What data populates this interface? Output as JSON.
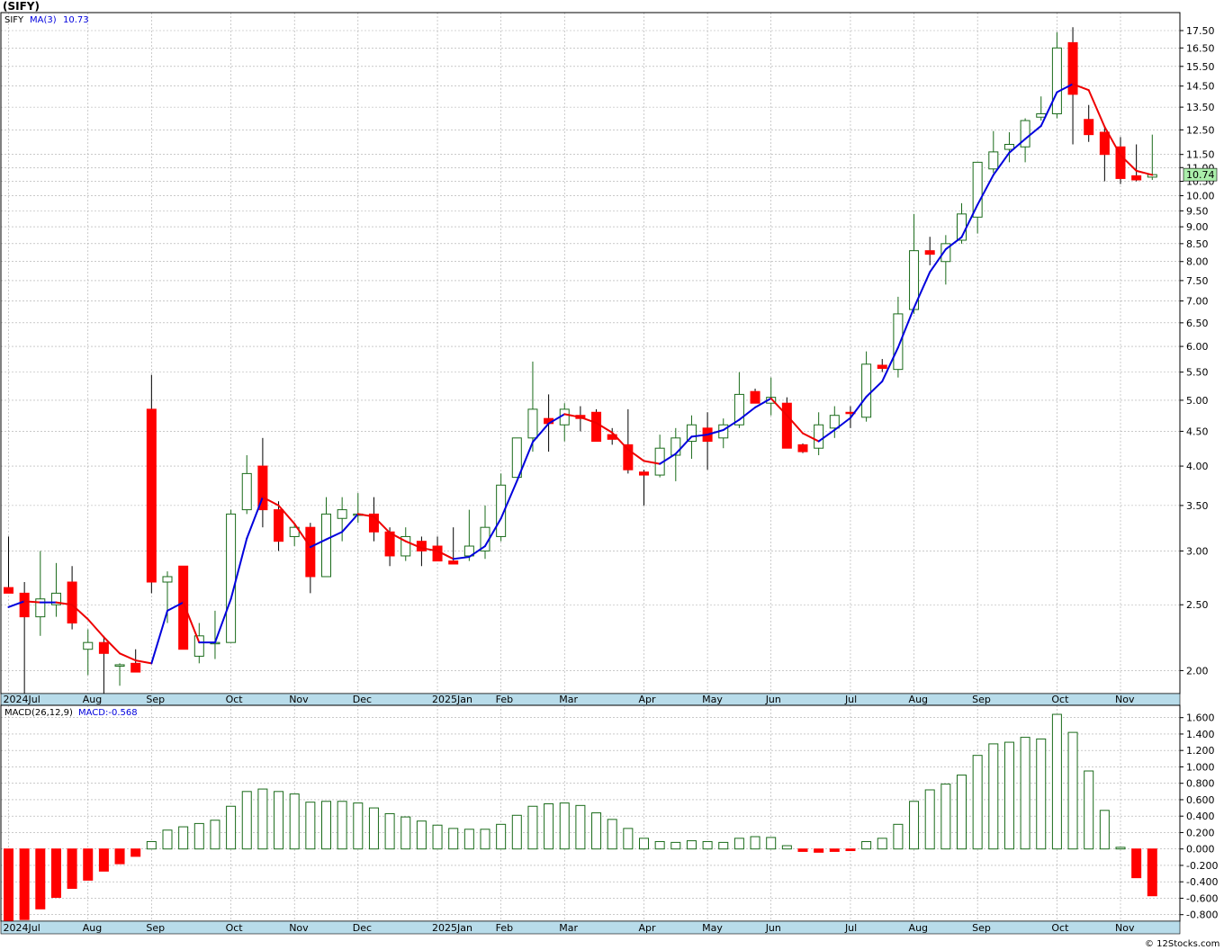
{
  "title": "(SIFY)",
  "footer": "© 12Stocks.com",
  "colors": {
    "up": "#1a6b1a",
    "down_fill": "#ff0000",
    "ma_up": "#0000dd",
    "ma_down": "#ee0000",
    "grid": "#aaaaaa",
    "axis_bar": "#b8dcea",
    "price_badge": "#aaeeaa",
    "macd_pos": "#1a6b1a",
    "macd_neg": "#ff0000"
  },
  "chart_data": [
    {
      "type": "candlestick",
      "panel": "price",
      "legend": {
        "symbol": "SIFY",
        "ma_label": "MA(3)",
        "ma_value": "10.73"
      },
      "last_price_label": "10.74",
      "scale": "log",
      "ylim": [
        1.85,
        18.6
      ],
      "y_ticks": [
        "2.00",
        "2.50",
        "3.00",
        "3.50",
        "4.00",
        "4.50",
        "5.00",
        "5.50",
        "6.00",
        "6.50",
        "7.00",
        "7.50",
        "8.00",
        "8.50",
        "9.00",
        "9.50",
        "10.00",
        "10.50",
        "11.00",
        "11.50",
        "12.50",
        "13.50",
        "14.50",
        "15.50",
        "16.50",
        "17.50"
      ],
      "x_labels": [
        {
          "i": 0,
          "text": "2024Jul"
        },
        {
          "i": 5,
          "text": "Aug"
        },
        {
          "i": 9,
          "text": "Sep"
        },
        {
          "i": 14,
          "text": "Oct"
        },
        {
          "i": 18,
          "text": "Nov"
        },
        {
          "i": 22,
          "text": "Dec"
        },
        {
          "i": 27,
          "text": "2025Jan"
        },
        {
          "i": 31,
          "text": "Feb"
        },
        {
          "i": 35,
          "text": "Mar"
        },
        {
          "i": 40,
          "text": "Apr"
        },
        {
          "i": 44,
          "text": "May"
        },
        {
          "i": 48,
          "text": "Jun"
        },
        {
          "i": 53,
          "text": "Jul"
        },
        {
          "i": 57,
          "text": "Aug"
        },
        {
          "i": 61,
          "text": "Sep"
        },
        {
          "i": 66,
          "text": "Oct"
        },
        {
          "i": 70,
          "text": "Nov"
        }
      ],
      "candles": [
        {
          "o": 2.65,
          "h": 3.15,
          "l": 2.6,
          "c": 2.6
        },
        {
          "o": 2.6,
          "h": 2.7,
          "l": 1.85,
          "c": 2.4
        },
        {
          "o": 2.4,
          "h": 3.0,
          "l": 2.25,
          "c": 2.55
        },
        {
          "o": 2.5,
          "h": 2.88,
          "l": 2.4,
          "c": 2.6
        },
        {
          "o": 2.7,
          "h": 2.85,
          "l": 2.3,
          "c": 2.35
        },
        {
          "o": 2.15,
          "h": 2.3,
          "l": 1.97,
          "c": 2.2
        },
        {
          "o": 2.2,
          "h": 2.25,
          "l": 1.85,
          "c": 2.12
        },
        {
          "o": 2.03,
          "h": 2.05,
          "l": 1.9,
          "c": 2.04
        },
        {
          "o": 2.05,
          "h": 2.15,
          "l": 2.0,
          "c": 1.99
        },
        {
          "o": 4.85,
          "h": 5.45,
          "l": 2.6,
          "c": 2.7
        },
        {
          "o": 2.7,
          "h": 2.8,
          "l": 2.35,
          "c": 2.75
        },
        {
          "o": 2.85,
          "h": 2.85,
          "l": 2.15,
          "c": 2.15
        },
        {
          "o": 2.1,
          "h": 2.35,
          "l": 2.05,
          "c": 2.25
        },
        {
          "o": 2.2,
          "h": 2.45,
          "l": 2.08,
          "c": 2.2
        },
        {
          "o": 2.2,
          "h": 3.45,
          "l": 2.2,
          "c": 3.4
        },
        {
          "o": 3.45,
          "h": 4.15,
          "l": 3.4,
          "c": 3.9
        },
        {
          "o": 4.0,
          "h": 4.4,
          "l": 3.25,
          "c": 3.45
        },
        {
          "o": 3.45,
          "h": 3.55,
          "l": 3.0,
          "c": 3.1
        },
        {
          "o": 3.15,
          "h": 3.3,
          "l": 3.05,
          "c": 3.25
        },
        {
          "o": 3.25,
          "h": 3.3,
          "l": 2.6,
          "c": 2.75
        },
        {
          "o": 2.75,
          "h": 3.6,
          "l": 2.75,
          "c": 3.4
        },
        {
          "o": 3.35,
          "h": 3.6,
          "l": 3.1,
          "c": 3.45
        },
        {
          "o": 3.4,
          "h": 3.65,
          "l": 3.3,
          "c": 3.4
        },
        {
          "o": 3.4,
          "h": 3.6,
          "l": 3.1,
          "c": 3.2
        },
        {
          "o": 3.2,
          "h": 3.25,
          "l": 2.85,
          "c": 2.95
        },
        {
          "o": 2.95,
          "h": 3.25,
          "l": 2.9,
          "c": 3.15
        },
        {
          "o": 3.1,
          "h": 3.15,
          "l": 2.85,
          "c": 3.0
        },
        {
          "o": 3.05,
          "h": 3.15,
          "l": 2.9,
          "c": 2.9
        },
        {
          "o": 2.9,
          "h": 3.25,
          "l": 2.87,
          "c": 2.87
        },
        {
          "o": 2.95,
          "h": 3.45,
          "l": 2.9,
          "c": 3.05
        },
        {
          "o": 3.0,
          "h": 3.5,
          "l": 2.92,
          "c": 3.25
        },
        {
          "o": 3.15,
          "h": 3.9,
          "l": 3.1,
          "c": 3.75
        },
        {
          "o": 3.85,
          "h": 4.4,
          "l": 3.85,
          "c": 4.4
        },
        {
          "o": 4.4,
          "h": 5.7,
          "l": 4.2,
          "c": 4.85
        },
        {
          "o": 4.7,
          "h": 5.1,
          "l": 4.2,
          "c": 4.62
        },
        {
          "o": 4.6,
          "h": 4.95,
          "l": 4.35,
          "c": 4.85
        },
        {
          "o": 4.75,
          "h": 4.9,
          "l": 4.5,
          "c": 4.7
        },
        {
          "o": 4.8,
          "h": 4.85,
          "l": 4.35,
          "c": 4.35
        },
        {
          "o": 4.45,
          "h": 4.55,
          "l": 4.3,
          "c": 4.38
        },
        {
          "o": 4.3,
          "h": 4.85,
          "l": 3.9,
          "c": 3.95
        },
        {
          "o": 3.92,
          "h": 3.95,
          "l": 3.5,
          "c": 3.88
        },
        {
          "o": 3.88,
          "h": 4.45,
          "l": 3.85,
          "c": 4.25
        },
        {
          "o": 4.15,
          "h": 4.55,
          "l": 3.8,
          "c": 4.4
        },
        {
          "o": 4.35,
          "h": 4.75,
          "l": 4.1,
          "c": 4.6
        },
        {
          "o": 4.55,
          "h": 4.8,
          "l": 3.95,
          "c": 4.35
        },
        {
          "o": 4.4,
          "h": 4.7,
          "l": 4.25,
          "c": 4.6
        },
        {
          "o": 4.6,
          "h": 5.5,
          "l": 4.55,
          "c": 5.1
        },
        {
          "o": 5.15,
          "h": 5.2,
          "l": 4.95,
          "c": 4.95
        },
        {
          "o": 4.95,
          "h": 5.4,
          "l": 4.75,
          "c": 5.05
        },
        {
          "o": 4.95,
          "h": 5.05,
          "l": 4.25,
          "c": 4.25
        },
        {
          "o": 4.3,
          "h": 4.32,
          "l": 4.18,
          "c": 4.2
        },
        {
          "o": 4.25,
          "h": 4.8,
          "l": 4.15,
          "c": 4.6
        },
        {
          "o": 4.55,
          "h": 4.9,
          "l": 4.4,
          "c": 4.75
        },
        {
          "o": 4.8,
          "h": 4.9,
          "l": 4.55,
          "c": 4.78
        },
        {
          "o": 4.72,
          "h": 5.9,
          "l": 4.65,
          "c": 5.65
        },
        {
          "o": 5.63,
          "h": 5.75,
          "l": 5.5,
          "c": 5.57
        },
        {
          "o": 5.55,
          "h": 7.1,
          "l": 5.4,
          "c": 6.7
        },
        {
          "o": 6.8,
          "h": 9.4,
          "l": 6.7,
          "c": 8.3
        },
        {
          "o": 8.3,
          "h": 8.7,
          "l": 7.9,
          "c": 8.2
        },
        {
          "o": 8.0,
          "h": 8.75,
          "l": 7.4,
          "c": 8.5
        },
        {
          "o": 8.6,
          "h": 9.75,
          "l": 8.5,
          "c": 9.4
        },
        {
          "o": 9.3,
          "h": 11.2,
          "l": 8.8,
          "c": 11.2
        },
        {
          "o": 10.95,
          "h": 12.45,
          "l": 10.8,
          "c": 11.6
        },
        {
          "o": 11.7,
          "h": 12.4,
          "l": 11.2,
          "c": 11.9
        },
        {
          "o": 11.8,
          "h": 13.0,
          "l": 11.2,
          "c": 12.9
        },
        {
          "o": 13.05,
          "h": 14.0,
          "l": 12.9,
          "c": 13.2
        },
        {
          "o": 13.2,
          "h": 17.4,
          "l": 13.0,
          "c": 16.5
        },
        {
          "o": 16.8,
          "h": 17.7,
          "l": 11.9,
          "c": 14.1
        },
        {
          "o": 12.95,
          "h": 13.6,
          "l": 12.0,
          "c": 12.3
        },
        {
          "o": 12.4,
          "h": 12.6,
          "l": 10.5,
          "c": 11.5
        },
        {
          "o": 11.8,
          "h": 12.2,
          "l": 10.4,
          "c": 10.6
        },
        {
          "o": 10.7,
          "h": 11.9,
          "l": 10.5,
          "c": 10.55
        },
        {
          "o": 10.65,
          "h": 12.3,
          "l": 10.55,
          "c": 10.74
        }
      ],
      "ma_values": [
        2.48,
        2.53,
        2.52,
        2.52,
        2.5,
        2.38,
        2.24,
        2.12,
        2.07,
        2.05,
        2.45,
        2.52,
        2.2,
        2.2,
        2.55,
        3.13,
        3.6,
        3.5,
        3.29,
        3.04,
        3.12,
        3.2,
        3.4,
        3.37,
        3.19,
        3.1,
        3.03,
        3.0,
        2.92,
        2.94,
        3.05,
        3.35,
        3.8,
        4.34,
        4.62,
        4.77,
        4.72,
        4.63,
        4.48,
        4.23,
        4.07,
        4.03,
        4.17,
        4.42,
        4.45,
        4.52,
        4.68,
        4.88,
        5.03,
        4.75,
        4.47,
        4.35,
        4.52,
        4.71,
        5.06,
        5.33,
        5.98,
        6.84,
        7.72,
        8.34,
        8.69,
        9.7,
        10.73,
        11.57,
        12.12,
        12.67,
        14.2,
        14.6,
        14.3,
        12.63,
        11.47,
        10.88,
        10.73
      ]
    },
    {
      "type": "bar",
      "panel": "macd",
      "legend": {
        "label": "MACD(26,12,9)",
        "value_label": "MACD:-0.568"
      },
      "ylim": [
        -0.88,
        1.75
      ],
      "y_ticks": [
        "-0.800",
        "-0.600",
        "-0.400",
        "-0.200",
        "0.000",
        "0.200",
        "0.400",
        "0.600",
        "0.800",
        "1.000",
        "1.200",
        "1.400",
        "1.600"
      ],
      "x_labels": [
        {
          "i": 0,
          "text": "2024Jul"
        },
        {
          "i": 5,
          "text": "Aug"
        },
        {
          "i": 9,
          "text": "Sep"
        },
        {
          "i": 14,
          "text": "Oct"
        },
        {
          "i": 18,
          "text": "Nov"
        },
        {
          "i": 22,
          "text": "Dec"
        },
        {
          "i": 27,
          "text": "2025Jan"
        },
        {
          "i": 31,
          "text": "Feb"
        },
        {
          "i": 35,
          "text": "Mar"
        },
        {
          "i": 40,
          "text": "Apr"
        },
        {
          "i": 44,
          "text": "May"
        },
        {
          "i": 48,
          "text": "Jun"
        },
        {
          "i": 53,
          "text": "Jul"
        },
        {
          "i": 57,
          "text": "Aug"
        },
        {
          "i": 61,
          "text": "Sep"
        },
        {
          "i": 66,
          "text": "Oct"
        },
        {
          "i": 70,
          "text": "Nov"
        }
      ],
      "values": [
        -0.89,
        -0.86,
        -0.73,
        -0.59,
        -0.48,
        -0.38,
        -0.27,
        -0.18,
        -0.09,
        0.09,
        0.23,
        0.27,
        0.31,
        0.35,
        0.52,
        0.7,
        0.73,
        0.7,
        0.67,
        0.57,
        0.58,
        0.58,
        0.56,
        0.5,
        0.43,
        0.39,
        0.34,
        0.29,
        0.25,
        0.24,
        0.24,
        0.3,
        0.41,
        0.52,
        0.55,
        0.56,
        0.53,
        0.44,
        0.36,
        0.25,
        0.13,
        0.09,
        0.08,
        0.1,
        0.09,
        0.08,
        0.13,
        0.15,
        0.14,
        0.04,
        -0.03,
        -0.04,
        -0.03,
        -0.02,
        0.09,
        0.13,
        0.3,
        0.58,
        0.72,
        0.79,
        0.9,
        1.14,
        1.28,
        1.3,
        1.36,
        1.34,
        1.64,
        1.42,
        0.95,
        0.47,
        0.02,
        -0.35,
        -0.57
      ]
    }
  ]
}
